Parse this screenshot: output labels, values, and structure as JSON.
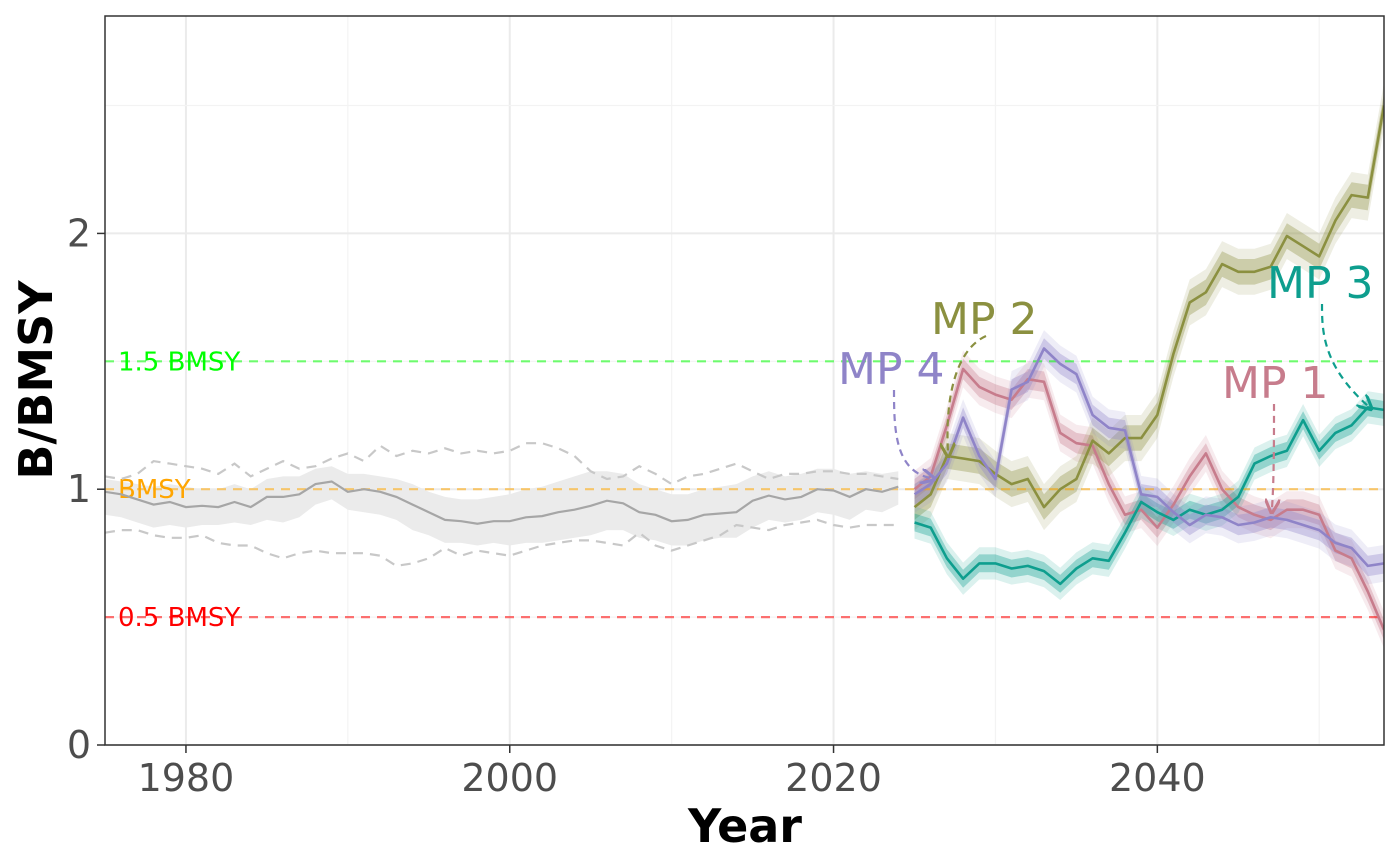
{
  "chart_data": {
    "type": "line",
    "xlabel": "Year",
    "ylabel": "B/BMSY",
    "xlim": [
      1975,
      2054
    ],
    "ylim": [
      0,
      2.85
    ],
    "x_ticks": [
      1980,
      2000,
      2020,
      2040
    ],
    "x_tick_labels": [
      "1980",
      "2000",
      "2020",
      "2040"
    ],
    "y_ticks": [
      0,
      1,
      2
    ],
    "y_tick_labels": [
      "0",
      "1",
      "2"
    ],
    "grid": true,
    "reference_lines": [
      {
        "label": "1.5 BMSY",
        "y": 1.5,
        "color": "#00ff00"
      },
      {
        "label": "BMSY",
        "y": 1.0,
        "color": "#ffa500"
      },
      {
        "label": "0.5 BMSY",
        "y": 0.5,
        "color": "#ff0000"
      }
    ],
    "historical": {
      "color": "#a6a6a6",
      "x": [
        1975,
        1976,
        1977,
        1978,
        1979,
        1980,
        1981,
        1982,
        1983,
        1984,
        1985,
        1986,
        1987,
        1988,
        1989,
        1990,
        1991,
        1992,
        1993,
        1994,
        1995,
        1996,
        1997,
        1998,
        1999,
        2000,
        2001,
        2002,
        2003,
        2004,
        2005,
        2006,
        2007,
        2008,
        2009,
        2010,
        2011,
        2012,
        2013,
        2014,
        2015,
        2016,
        2017,
        2018,
        2019,
        2020,
        2021,
        2022,
        2023,
        2024
      ],
      "median": [
        0.99,
        0.98,
        0.96,
        0.94,
        0.95,
        0.93,
        0.935,
        0.93,
        0.95,
        0.93,
        0.97,
        0.97,
        0.98,
        1.02,
        1.03,
        0.99,
        1.0,
        0.99,
        0.97,
        0.94,
        0.91,
        0.88,
        0.875,
        0.865,
        0.875,
        0.875,
        0.89,
        0.895,
        0.91,
        0.92,
        0.935,
        0.955,
        0.945,
        0.91,
        0.9,
        0.875,
        0.88,
        0.9,
        0.905,
        0.91,
        0.955,
        0.975,
        0.96,
        0.97,
        1.0,
        0.995,
        0.97,
        1.0,
        0.99,
        1.01
      ],
      "band_upper": [
        1.04,
        1.03,
        1.02,
        1.01,
        1.02,
        1.01,
        1.0,
        1.0,
        1.02,
        1.0,
        1.04,
        1.05,
        1.05,
        1.08,
        1.09,
        1.06,
        1.06,
        1.05,
        1.04,
        1.02,
        0.99,
        0.97,
        0.96,
        0.96,
        0.97,
        0.98,
        1.0,
        1.01,
        1.03,
        1.05,
        1.07,
        1.07,
        1.06,
        1.02,
        1.0,
        0.98,
        0.98,
        1.0,
        1.01,
        1.02,
        1.05,
        1.07,
        1.05,
        1.06,
        1.08,
        1.08,
        1.06,
        1.07,
        1.06,
        1.07
      ],
      "band_lower": [
        0.9,
        0.89,
        0.87,
        0.85,
        0.86,
        0.85,
        0.86,
        0.86,
        0.87,
        0.86,
        0.88,
        0.87,
        0.89,
        0.94,
        0.96,
        0.92,
        0.91,
        0.9,
        0.88,
        0.84,
        0.82,
        0.79,
        0.79,
        0.78,
        0.79,
        0.78,
        0.79,
        0.79,
        0.8,
        0.81,
        0.82,
        0.84,
        0.84,
        0.81,
        0.8,
        0.78,
        0.78,
        0.8,
        0.81,
        0.81,
        0.85,
        0.88,
        0.87,
        0.88,
        0.91,
        0.9,
        0.88,
        0.92,
        0.91,
        0.94
      ],
      "outer_upper": [
        1.05,
        1.04,
        1.06,
        1.11,
        1.1,
        1.09,
        1.08,
        1.06,
        1.1,
        1.05,
        1.08,
        1.11,
        1.08,
        1.09,
        1.12,
        1.14,
        1.11,
        1.17,
        1.13,
        1.15,
        1.14,
        1.16,
        1.14,
        1.15,
        1.14,
        1.15,
        1.18,
        1.18,
        1.16,
        1.13,
        1.07,
        1.04,
        1.05,
        1.09,
        1.06,
        1.02,
        1.05,
        1.06,
        1.08,
        1.1,
        1.07,
        1.04,
        1.06,
        1.06,
        1.07,
        1.07,
        1.06,
        1.06,
        1.05,
        1.04
      ],
      "outer_lower": [
        0.83,
        0.84,
        0.84,
        0.82,
        0.81,
        0.81,
        0.82,
        0.79,
        0.78,
        0.78,
        0.75,
        0.73,
        0.75,
        0.76,
        0.75,
        0.75,
        0.75,
        0.74,
        0.7,
        0.71,
        0.73,
        0.77,
        0.74,
        0.76,
        0.75,
        0.74,
        0.76,
        0.78,
        0.79,
        0.8,
        0.8,
        0.79,
        0.78,
        0.83,
        0.78,
        0.76,
        0.78,
        0.8,
        0.82,
        0.86,
        0.85,
        0.84,
        0.86,
        0.87,
        0.88,
        0.86,
        0.85,
        0.86,
        0.86,
        0.86
      ]
    },
    "projection_x": [
      2025,
      2026,
      2027,
      2028,
      2029,
      2030,
      2031,
      2032,
      2033,
      2034,
      2035,
      2036,
      2037,
      2038,
      2039,
      2040,
      2041,
      2042,
      2043,
      2044,
      2045,
      2046,
      2047,
      2048,
      2049,
      2050,
      2051,
      2052,
      2053,
      2054
    ],
    "series": [
      {
        "name": "MP 1",
        "color": "#c77c8c",
        "values": [
          1.0,
          1.05,
          1.25,
          1.47,
          1.4,
          1.37,
          1.35,
          1.43,
          1.42,
          1.22,
          1.18,
          1.17,
          1.02,
          0.9,
          0.92,
          0.85,
          0.94,
          1.05,
          1.14,
          1.0,
          0.93,
          0.9,
          0.88,
          0.92,
          0.92,
          0.9,
          0.76,
          0.73,
          0.6,
          0.45
        ],
        "band": 0.04
      },
      {
        "name": "MP 2",
        "color": "#8b9040",
        "values": [
          0.93,
          0.98,
          1.13,
          1.12,
          1.11,
          1.06,
          1.02,
          1.04,
          0.93,
          1.0,
          1.04,
          1.19,
          1.14,
          1.2,
          1.2,
          1.29,
          1.53,
          1.73,
          1.77,
          1.88,
          1.85,
          1.85,
          1.87,
          1.99,
          1.95,
          1.91,
          2.05,
          2.15,
          2.14,
          2.5
        ],
        "band": 0.05
      },
      {
        "name": "MP 3",
        "color": "#0e9e8e",
        "values": [
          0.87,
          0.85,
          0.73,
          0.65,
          0.71,
          0.71,
          0.69,
          0.7,
          0.68,
          0.63,
          0.69,
          0.73,
          0.72,
          0.83,
          0.95,
          0.91,
          0.88,
          0.92,
          0.9,
          0.92,
          0.97,
          1.1,
          1.13,
          1.15,
          1.27,
          1.15,
          1.22,
          1.25,
          1.32,
          1.31
        ],
        "band": 0.035
      },
      {
        "name": "MP 4",
        "color": "#8f84c8",
        "values": [
          0.98,
          1.02,
          1.1,
          1.28,
          1.13,
          1.04,
          1.39,
          1.42,
          1.55,
          1.49,
          1.45,
          1.29,
          1.24,
          1.23,
          0.98,
          0.97,
          0.91,
          0.86,
          0.9,
          0.89,
          0.86,
          0.87,
          0.89,
          0.88,
          0.86,
          0.84,
          0.79,
          0.77,
          0.7,
          0.71
        ],
        "band": 0.04
      }
    ],
    "annotations": [
      {
        "text": "MP 1",
        "color": "#c77c8c"
      },
      {
        "text": "MP 2",
        "color": "#8b9040"
      },
      {
        "text": "MP 3",
        "color": "#0e9e8e"
      },
      {
        "text": "MP 4",
        "color": "#8f84c8"
      }
    ]
  }
}
